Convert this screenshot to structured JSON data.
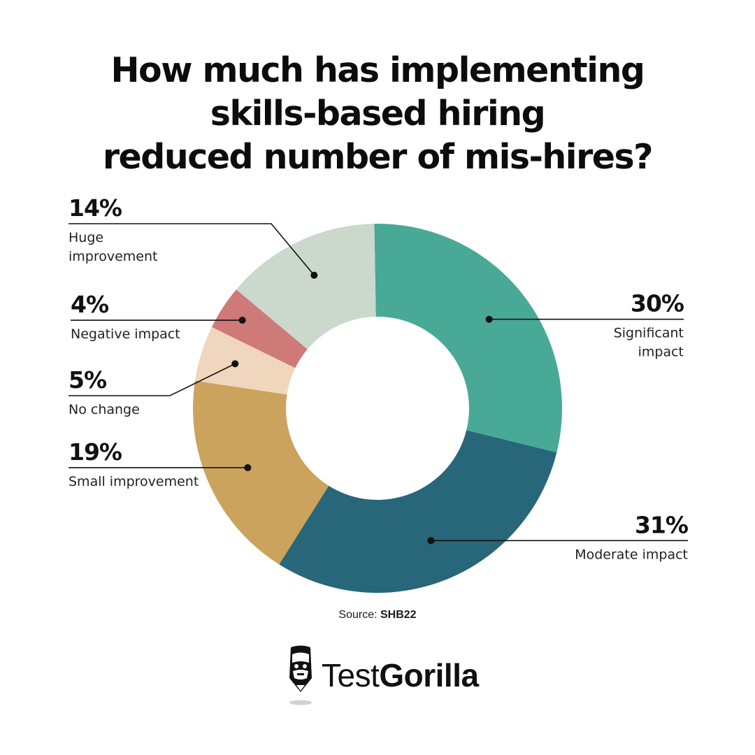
{
  "title_lines": [
    "How much has implementing",
    "skills-based hiring",
    "reduced number of mis-hires?"
  ],
  "source": {
    "prefix": "Source:",
    "name": "SHB22"
  },
  "logo": {
    "part1": "Test",
    "part2": "Gorilla"
  },
  "chart_data": {
    "type": "pie",
    "donut": true,
    "slices": [
      {
        "label": "Significant impact",
        "value": 30,
        "display": "30%",
        "color": "#48a997"
      },
      {
        "label": "Moderate impact",
        "value": 31,
        "display": "31%",
        "color": "#28667a"
      },
      {
        "label": "Small improvement",
        "value": 19,
        "display": "19%",
        "color": "#cba35d"
      },
      {
        "label": "No change",
        "value": 5,
        "display": "5%",
        "color": "#f0d6bc"
      },
      {
        "label": "Negative impact",
        "value": 4,
        "display": "4%",
        "color": "#cd7a78"
      },
      {
        "label": "Huge improvement",
        "value": 14,
        "display": "14%",
        "color": "#cbd8cc"
      }
    ]
  }
}
